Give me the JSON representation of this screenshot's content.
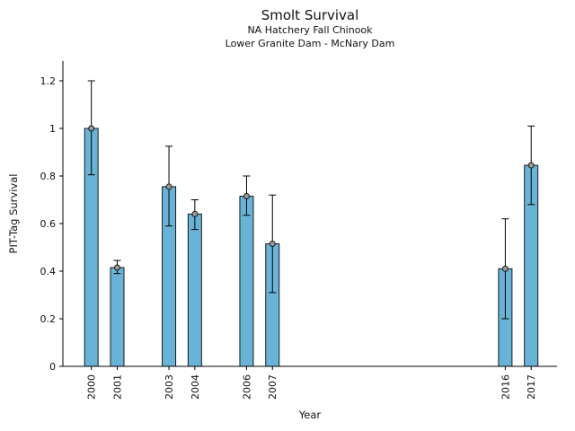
{
  "chart_data": {
    "type": "bar",
    "title": "Smolt Survival",
    "subtitle1": "NA Hatchery Fall Chinook",
    "subtitle2": "Lower Granite Dam - McNary Dam",
    "xlabel": "Year",
    "ylabel": "PIT-Tag Survival",
    "categories": [
      2000,
      2001,
      2003,
      2004,
      2006,
      2007,
      2016,
      2017
    ],
    "values": [
      1.0,
      0.415,
      0.755,
      0.64,
      0.715,
      0.515,
      0.41,
      0.845
    ],
    "error_low": [
      0.805,
      0.39,
      0.59,
      0.575,
      0.635,
      0.31,
      0.2,
      0.68
    ],
    "error_high": [
      1.2,
      0.445,
      0.925,
      0.7,
      0.8,
      0.72,
      0.62,
      1.01
    ],
    "yticks": [
      0,
      0.2,
      0.4,
      0.6,
      0.8,
      1,
      1.2
    ],
    "ylim": [
      0,
      1.283
    ],
    "xlim": [
      1998.9,
      2018.0
    ],
    "grid": false,
    "legend": "none",
    "bar_color": "#69b3d6",
    "bar_edge_color": "#1a1a1a",
    "error_color": "#000000",
    "marker_fill": "#9a9a9a",
    "axis_color": "#000000"
  }
}
